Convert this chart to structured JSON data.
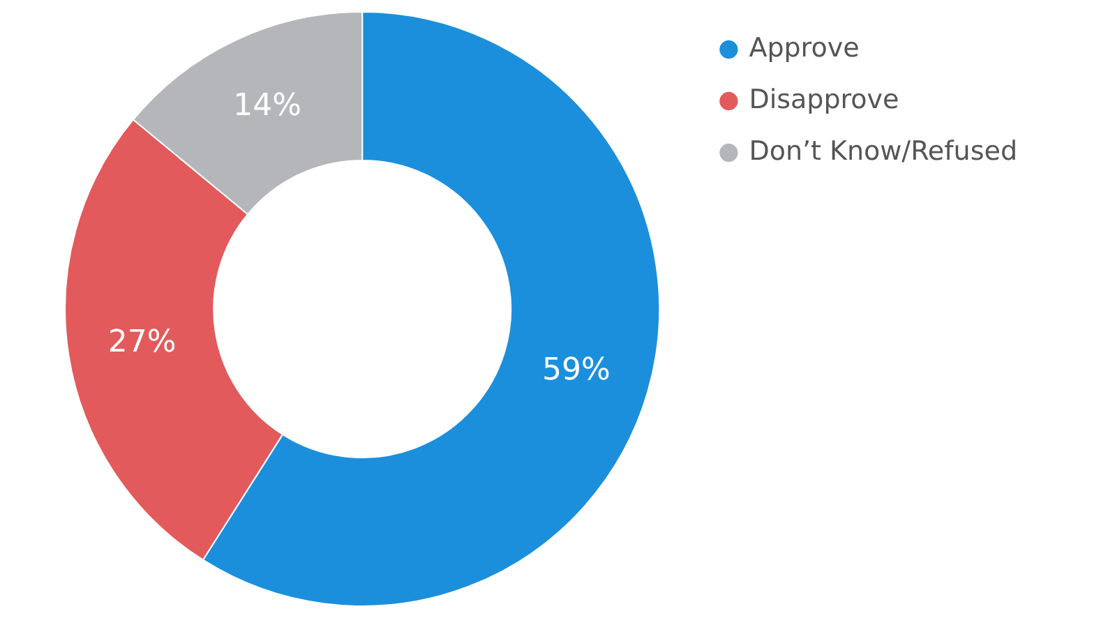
{
  "chart_data": {
    "type": "donut",
    "categories": [
      "Approve",
      "Disapprove",
      "Don’t Know/Refused"
    ],
    "values": [
      59,
      27,
      14
    ],
    "colors": [
      "#1b8fdc",
      "#e25a5c",
      "#b5b6ba"
    ],
    "value_labels": [
      "59%",
      "27%",
      "14%"
    ],
    "legend": "top right"
  }
}
